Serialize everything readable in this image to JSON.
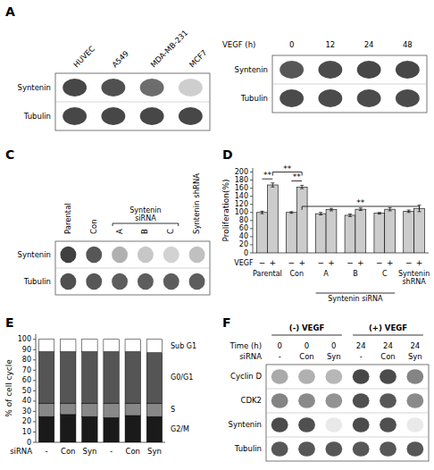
{
  "chart_data": [
    {
      "type": "blot",
      "title": "A",
      "categories": [
        "HUVEC",
        "A549",
        "MDA-MB-231",
        "MCF7"
      ],
      "rows": [
        "Syntenin",
        "Tubulin"
      ],
      "cells": [
        [
          0.82,
          0.78,
          0.65,
          0.22
        ],
        [
          0.82,
          0.82,
          0.82,
          0.82
        ]
      ]
    },
    {
      "type": "blot",
      "xlabel": "VEGF (h)",
      "categories": [
        "0",
        "12",
        "24",
        "48"
      ],
      "rows": [
        "Syntenin",
        "Tubulin"
      ],
      "cells": [
        [
          0.75,
          0.8,
          0.82,
          0.82
        ],
        [
          0.8,
          0.8,
          0.8,
          0.8
        ]
      ]
    },
    {
      "type": "blot",
      "title": "C",
      "categories": [
        "Parental",
        "Con",
        "A",
        "B",
        "C",
        "Syntenin shRNA"
      ],
      "rows": [
        "Syntenin",
        "Tubulin"
      ],
      "cells": [
        [
          0.85,
          0.75,
          0.35,
          0.25,
          0.2,
          0.28
        ],
        [
          0.78,
          0.75,
          0.72,
          0.72,
          0.72,
          0.72
        ]
      ],
      "annotations": [
        {
          "text": "Syntenin\nsiRNA",
          "from": {
            "category": "A"
          },
          "to": {
            "category": "C"
          }
        }
      ]
    },
    {
      "type": "bar",
      "title": "D",
      "ylabel": "Proliferation(%)",
      "xlabel": "VEGF",
      "categories": [
        "Parental",
        "Con",
        "A",
        "B",
        "C",
        "Syntenin\nshRNA"
      ],
      "series": [
        {
          "name": "−",
          "color": "#cccccc",
          "values": [
            100,
            100,
            97,
            93,
            98,
            103
          ],
          "errors": [
            3,
            2,
            3,
            3,
            2,
            3
          ]
        },
        {
          "name": "+",
          "color": "#cccccc",
          "values": [
            168,
            163,
            107,
            108,
            108,
            110
          ],
          "errors": [
            5,
            4,
            3,
            3,
            4,
            8
          ]
        }
      ],
      "ylim": [
        0,
        210
      ],
      "yticks": [
        0,
        20,
        40,
        60,
        80,
        100,
        120,
        140,
        160,
        180,
        200
      ],
      "annotations": [
        {
          "text": "**",
          "y": 183,
          "from": {
            "category": "Parental",
            "series": "−"
          },
          "to": {
            "category": "Parental",
            "series": "+"
          }
        },
        {
          "text": "**",
          "y": 178,
          "from": {
            "category": "Con",
            "series": "−"
          },
          "to": {
            "category": "Con",
            "series": "+"
          }
        },
        {
          "text": "**",
          "y": 200,
          "from": {
            "category": "Parental",
            "series": "+"
          },
          "to": {
            "category": "Con",
            "series": "+"
          }
        },
        {
          "text": "**",
          "y": 115,
          "from": {
            "category": "Con",
            "series": "+"
          },
          "to": {
            "category": "Syntenin\nshRNA",
            "series": "+"
          }
        },
        {
          "text": "Syntenin siRNA",
          "from": {
            "category": "A"
          },
          "to": {
            "category": "C"
          }
        }
      ]
    },
    {
      "type": "bar",
      "stacked": true,
      "title": "E",
      "ylabel": "% of cell cycle",
      "xlabel": "siRNA",
      "categories": [
        "-",
        "Con",
        "Syn",
        "-",
        "Con",
        "Syn"
      ],
      "series": [
        {
          "name": "G2/M",
          "color": "#1a1a1a",
          "values": [
            25,
            27,
            25,
            24,
            26,
            25
          ]
        },
        {
          "name": "S",
          "color": "#888888",
          "values": [
            13,
            11,
            13,
            14,
            12,
            13
          ]
        },
        {
          "name": "G0/G1",
          "color": "#555555",
          "values": [
            50,
            50,
            50,
            50,
            50,
            49
          ]
        },
        {
          "name": "Sub G1",
          "color": "#ffffff",
          "values": [
            12,
            12,
            12,
            12,
            12,
            13
          ]
        }
      ],
      "ylim": [
        0,
        105
      ],
      "yticks": [
        0,
        10,
        20,
        30,
        40,
        50,
        60,
        70,
        80,
        90,
        100
      ],
      "legend": "right"
    },
    {
      "type": "blot",
      "title": "F",
      "column_groups": [
        {
          "text": "(-) VEGF",
          "count": 3
        },
        {
          "text": "(+) VEGF",
          "count": 3
        }
      ],
      "header_rows": [
        {
          "name": "Time (h)",
          "values": [
            "0",
            "0",
            "0",
            "24",
            "24",
            "24"
          ]
        },
        {
          "name": "siRNA",
          "values": [
            "-",
            "Con",
            "Syn",
            "-",
            "Con",
            "Syn"
          ]
        }
      ],
      "rows": [
        "Cyclin D",
        "CDK2",
        "Syntenin",
        "Tubulin"
      ],
      "cells": [
        [
          0.38,
          0.35,
          0.32,
          0.82,
          0.8,
          0.55
        ],
        [
          0.55,
          0.52,
          0.48,
          0.78,
          0.75,
          0.52
        ],
        [
          0.8,
          0.78,
          0.1,
          0.8,
          0.78,
          0.1
        ],
        [
          0.75,
          0.75,
          0.75,
          0.75,
          0.75,
          0.75
        ]
      ]
    }
  ]
}
